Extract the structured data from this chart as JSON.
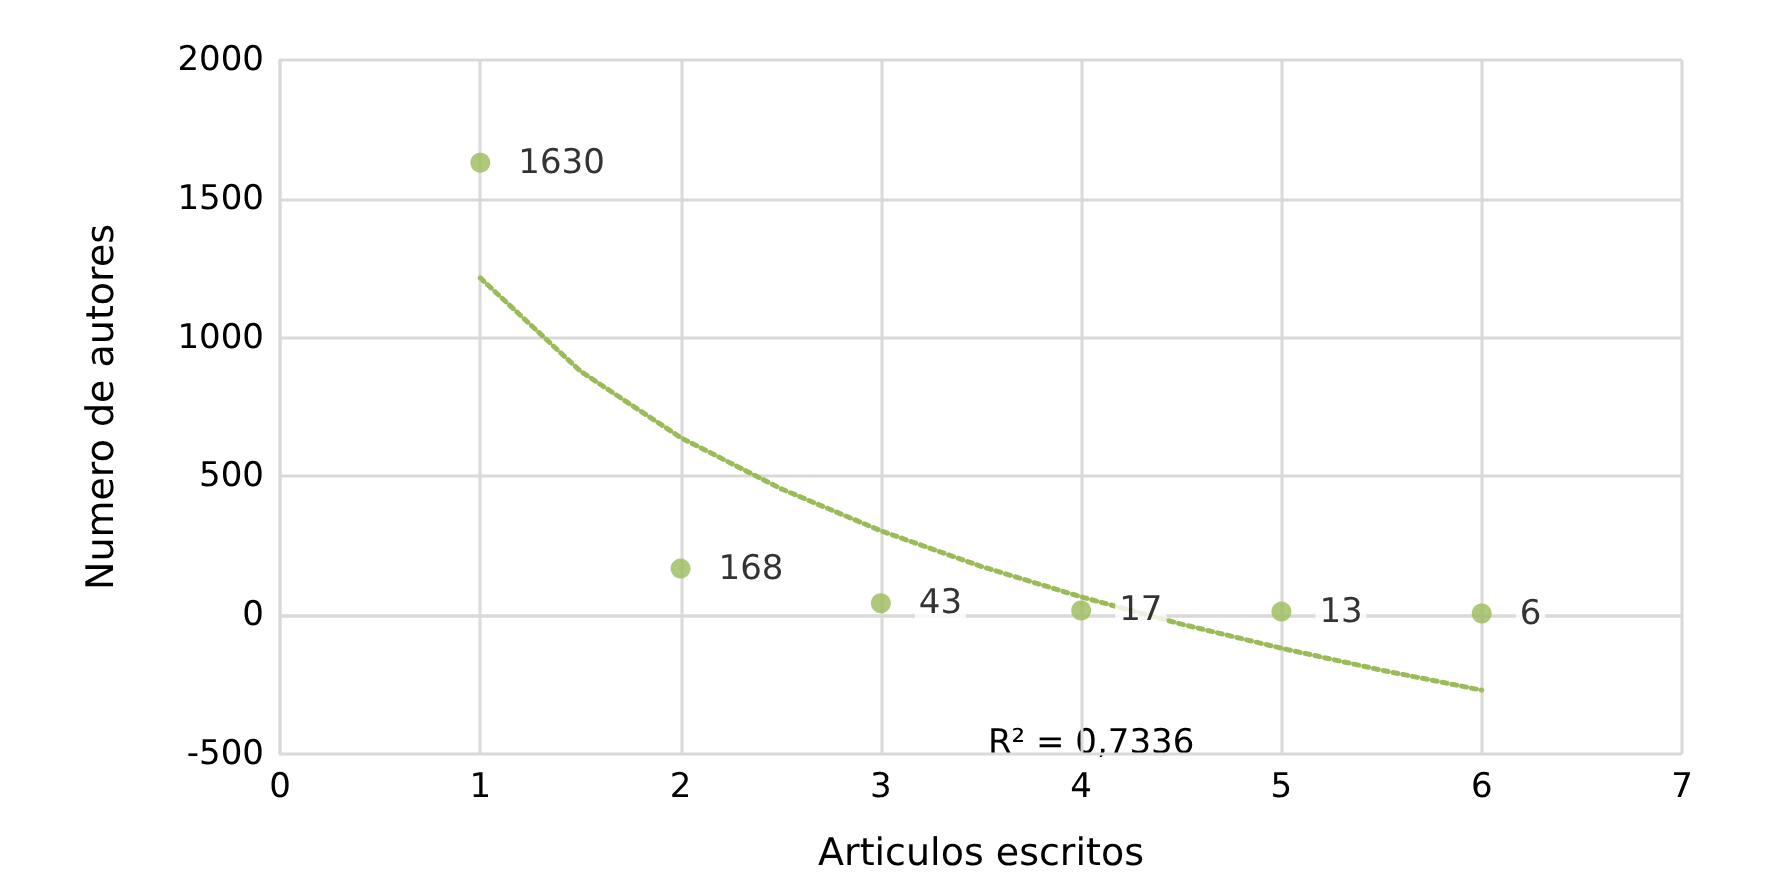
{
  "chart_data": {
    "type": "scatter",
    "xlabel": "Articulos escritos",
    "ylabel": "Numero de autores",
    "x": [
      1,
      2,
      3,
      4,
      5,
      6
    ],
    "series": [
      {
        "color": "#9bbb59",
        "values": [
          1630,
          168,
          43,
          17,
          13,
          6
        ],
        "value_labels": [
          "1630",
          "168",
          "43",
          "17",
          "13",
          "6"
        ]
      },
      {
        "type": "line",
        "color": "#9bbb59",
        "line_style": "dotted",
        "marker": "none",
        "x": [
          1,
          1.5,
          2,
          2.5,
          3,
          3.5,
          4,
          4.5,
          5,
          5.5,
          6
        ],
        "values": [
          1215,
          879,
          640,
          456,
          304,
          176,
          66,
          -32,
          -119,
          -198,
          -270
        ]
      }
    ],
    "marker": "circle",
    "xlim": [
      0,
      7
    ],
    "xticks": [
      0,
      1,
      2,
      3,
      4,
      5,
      6,
      7
    ],
    "ylim": [
      -500,
      2000
    ],
    "yticks": [
      -500,
      0,
      500,
      1000,
      1500,
      2000
    ],
    "grid": true,
    "annotations": [
      "R² = 0,7336"
    ]
  }
}
